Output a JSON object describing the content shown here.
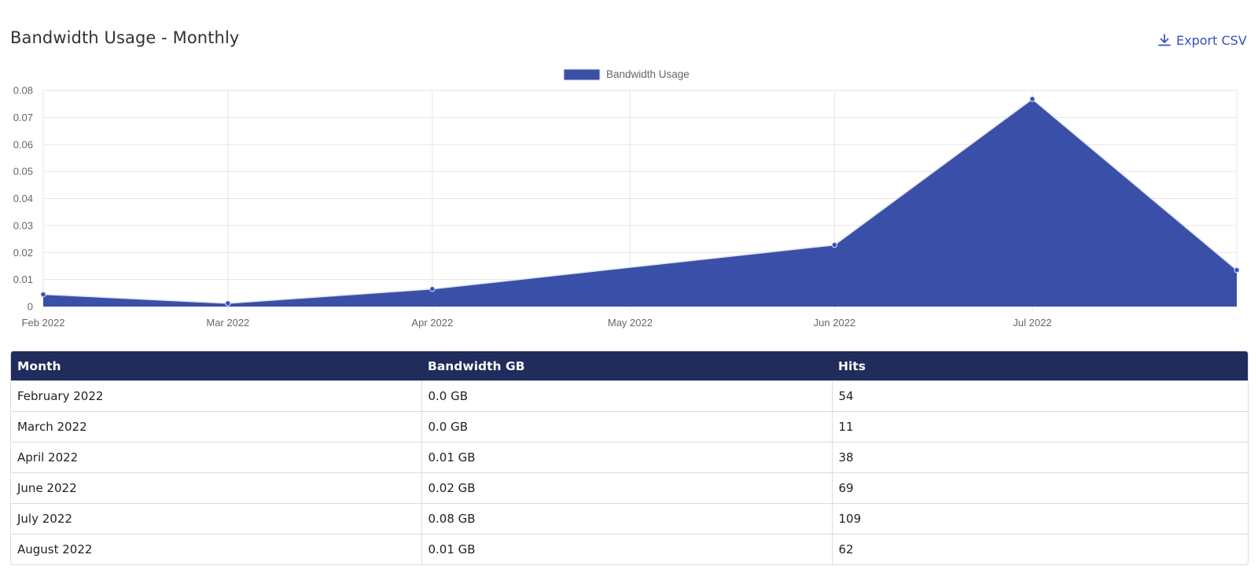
{
  "page": {
    "title": "Bandwidth Usage - Monthly",
    "export_label": "Export CSV",
    "export_icon": "download-icon"
  },
  "chart_data": {
    "type": "area",
    "legend": {
      "label": "Bandwidth Usage",
      "position": "top-center",
      "color": "#3a4fa8"
    },
    "x_ticks": [
      "Feb 2022",
      "Mar 2022",
      "Apr 2022",
      "May 2022",
      "Jun 2022",
      "Jul 2022"
    ],
    "y_ticks": [
      "0",
      "0.01",
      "0.02",
      "0.03",
      "0.04",
      "0.05",
      "0.06",
      "0.07",
      "0.08"
    ],
    "ylim": [
      0,
      0.08
    ],
    "grid": true,
    "series": [
      {
        "name": "Bandwidth Usage",
        "x": [
          "2022-02-01",
          "2022-03-01",
          "2022-04-01",
          "2022-06-01",
          "2022-07-01",
          "2022-08-01"
        ],
        "values": [
          0.0045,
          0.0012,
          0.0065,
          0.0228,
          0.0768,
          0.0135
        ]
      }
    ]
  },
  "table": {
    "headers": [
      "Month",
      "Bandwidth GB",
      "Hits"
    ],
    "rows": [
      [
        "February 2022",
        "0.0 GB",
        "54"
      ],
      [
        "March 2022",
        "0.0 GB",
        "11"
      ],
      [
        "April 2022",
        "0.01 GB",
        "38"
      ],
      [
        "June 2022",
        "0.02 GB",
        "69"
      ],
      [
        "July 2022",
        "0.08 GB",
        "109"
      ],
      [
        "August 2022",
        "0.01 GB",
        "62"
      ]
    ]
  },
  "colors": {
    "accent": "#3650c2",
    "area_fill": "#3a4fa8",
    "table_header": "#1f2c5c"
  }
}
